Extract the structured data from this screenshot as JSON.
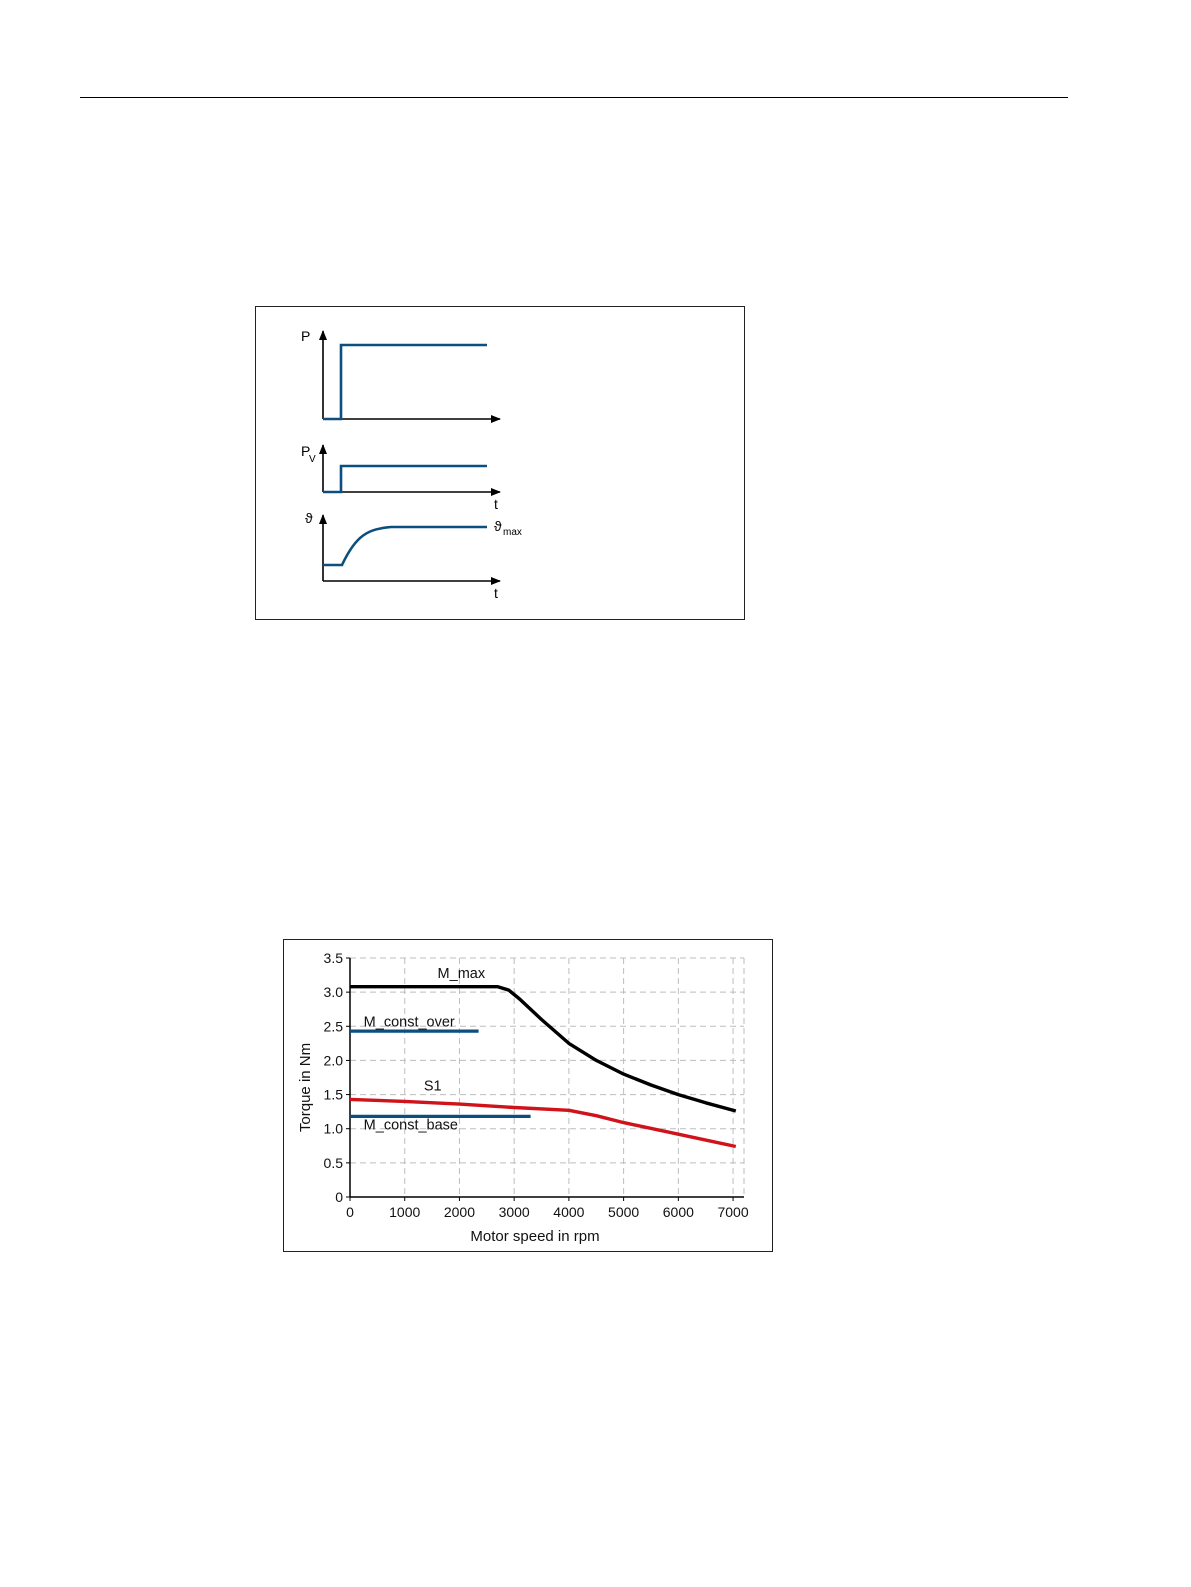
{
  "figure1": {
    "panels": [
      {
        "label": "P",
        "subscript": ""
      },
      {
        "label": "P",
        "subscript": "V",
        "time_label": "t"
      },
      {
        "label": "ϑ",
        "subscript": "",
        "end_label": "ϑ",
        "end_label_sub": "max",
        "time_label": "t"
      }
    ],
    "colors": {
      "signal": "#0b4e80",
      "axis": "#000000"
    }
  },
  "chart_data": {
    "type": "line",
    "title": "",
    "xlabel": "Motor speed in rpm",
    "ylabel": "Torque in Nm",
    "xlim": [
      0,
      7200
    ],
    "ylim": [
      0,
      3.5
    ],
    "x_ticks": [
      0,
      1000,
      2000,
      3000,
      4000,
      5000,
      6000,
      7000
    ],
    "x_tick_labels": [
      "0",
      "1000",
      "2000",
      "3000",
      "4000",
      "5000",
      "6000",
      "7000"
    ],
    "y_ticks": [
      0,
      0.5,
      1.0,
      1.5,
      2.0,
      2.5,
      3.0,
      3.5
    ],
    "y_tick_labels": [
      "0",
      "0.5",
      "1.0",
      "1.5",
      "2.0",
      "2.5",
      "3.0",
      "3.5"
    ],
    "grid": true,
    "series": [
      {
        "name": "M_max",
        "color": "#000000",
        "x": [
          0,
          1000,
          2000,
          2700,
          2900,
          3100,
          3500,
          4000,
          4500,
          5000,
          5500,
          6000,
          6500,
          7050
        ],
        "y": [
          3.08,
          3.08,
          3.08,
          3.08,
          3.03,
          2.9,
          2.6,
          2.25,
          2.0,
          1.8,
          1.64,
          1.5,
          1.38,
          1.26
        ]
      },
      {
        "name": "M_const_over",
        "color": "#0b4e80",
        "x": [
          0,
          2350
        ],
        "y": [
          2.43,
          2.43
        ]
      },
      {
        "name": "S1",
        "color": "#d0121b",
        "x": [
          0,
          1000,
          2000,
          3000,
          4000,
          4500,
          5000,
          6000,
          7050
        ],
        "y": [
          1.43,
          1.4,
          1.36,
          1.31,
          1.27,
          1.19,
          1.09,
          0.92,
          0.74
        ]
      },
      {
        "name": "M_const_base",
        "color": "#0b4e80",
        "x": [
          0,
          3300
        ],
        "y": [
          1.18,
          1.18
        ]
      }
    ]
  }
}
